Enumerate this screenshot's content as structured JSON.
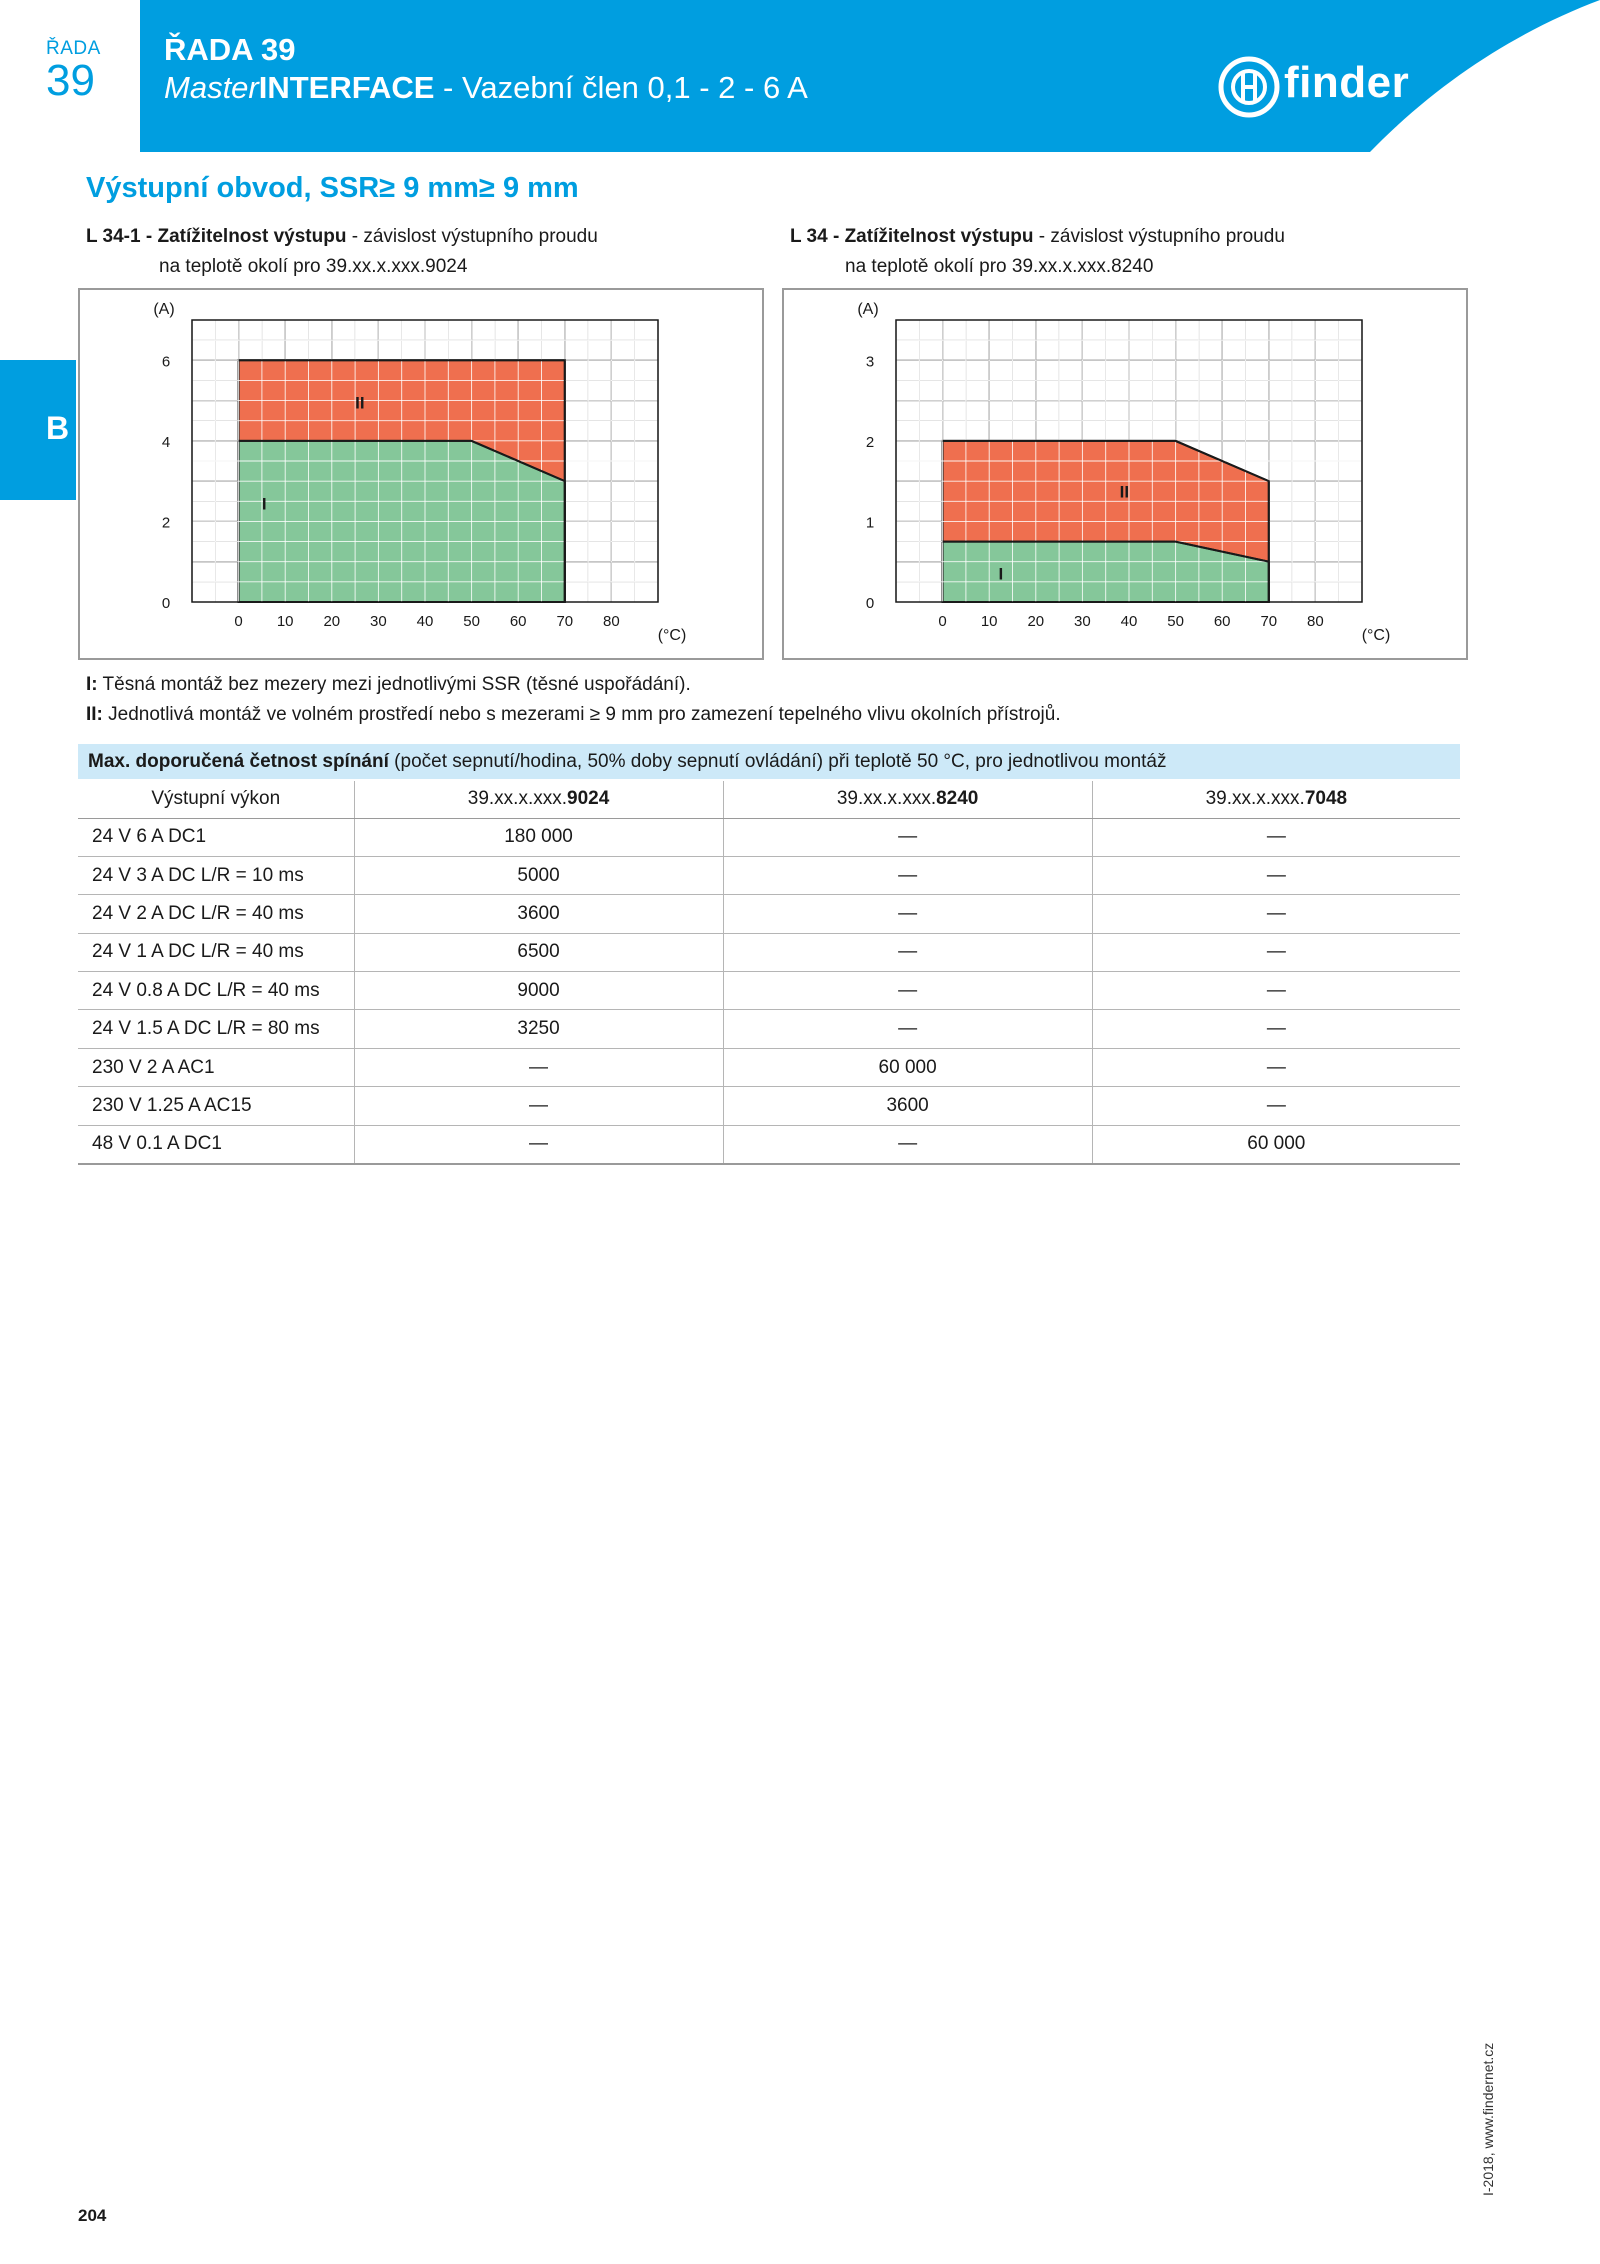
{
  "series_tab": {
    "label": "ŘADA",
    "number": "39"
  },
  "header": {
    "title": "ŘADA 39",
    "subtitle_italic": "Master",
    "subtitle_bold": "INTERFACE",
    "subtitle_rest": " - Vazební člen 0,1 - 2 - 6 A"
  },
  "logo": {
    "text": "finder"
  },
  "side_tab": {
    "letter": "B"
  },
  "section": {
    "title": "Výstupní obvod, SSR≥ 9 mm≥ 9 mm"
  },
  "charts_text": [
    {
      "code": "L 34-1 - ",
      "bold": "Zatížitelnost výstupu",
      "rest": " - závislost výstupního proudu",
      "line2": "na teplotě okolí pro 39.xx.x.xxx.9024"
    },
    {
      "code": "L 34 - ",
      "bold": "Zatížitelnost výstupu",
      "rest": " - závislost výstupního proudu",
      "line2": "na teplotě okolí pro 39.xx.x.xxx.8240"
    }
  ],
  "chart_data": [
    {
      "type": "area",
      "title": "L 34-1 - Zatížitelnost výstupu - závislost výstupního proudu na teplotě okolí pro 39.xx.x.xxx.9024",
      "ylabel": "(A)",
      "xlabel": "(°C)",
      "x_ticks": [
        0,
        10,
        20,
        30,
        40,
        50,
        60,
        70,
        80
      ],
      "y_ticks": [
        0,
        2,
        4,
        6
      ],
      "xlim": [
        -10,
        90
      ],
      "ylim": [
        0,
        7
      ],
      "grid": true,
      "series": [
        {
          "name": "II",
          "color": "#ef6f4f",
          "x": [
            0,
            70,
            70
          ],
          "y": [
            6,
            6,
            0
          ]
        },
        {
          "name": "I",
          "color": "#85c79a",
          "x": [
            0,
            50,
            70,
            70
          ],
          "y": [
            4,
            4,
            3,
            0
          ]
        }
      ]
    },
    {
      "type": "area",
      "title": "L 34 - Zatížitelnost výstupu - závislost výstupního proudu na teplotě okolí pro 39.xx.x.xxx.8240",
      "ylabel": "(A)",
      "xlabel": "(°C)",
      "x_ticks": [
        0,
        10,
        20,
        30,
        40,
        50,
        60,
        70,
        80
      ],
      "y_ticks": [
        0,
        1,
        2,
        3
      ],
      "xlim": [
        -10,
        90
      ],
      "ylim": [
        0,
        3.5
      ],
      "grid": true,
      "series": [
        {
          "name": "II",
          "color": "#ef6f4f",
          "x": [
            0,
            50,
            70,
            70
          ],
          "y": [
            2,
            2,
            1.5,
            0
          ]
        },
        {
          "name": "I",
          "color": "#85c79a",
          "x": [
            0,
            50,
            70,
            70
          ],
          "y": [
            0.75,
            0.75,
            0.5,
            0
          ]
        }
      ]
    }
  ],
  "notes": [
    {
      "key": "I:",
      "text": "  Těsná montáž bez mezery mezi jednotlivými SSR (těsné uspořádání)."
    },
    {
      "key": "II:",
      "text": " Jednotlivá montáž ve volném prostředí nebo s mezerami ≥ 9 mm pro zamezení tepelného vlivu okolních přístrojů."
    }
  ],
  "table": {
    "caption_bold": "Max. doporučená četnost spínání",
    "caption_rest": " (počet sepnutí/hodina, 50% doby sepnutí ovládání) při teplotě 50 °C, pro jednotlivou montáž",
    "header": {
      "col0": "Výstupní výkon",
      "col1_prefix": "39.xx.x.xxx.",
      "col1_bold": "9024",
      "col2_prefix": "39.xx.x.xxx.",
      "col2_bold": "8240",
      "col3_prefix": "39.xx.x.xxx.",
      "col3_bold": "7048"
    },
    "rows": [
      [
        "24 V 6 A DC1",
        "180 000",
        "—",
        "—"
      ],
      [
        "24 V 3 A DC L/R = 10 ms",
        "5000",
        "—",
        "—"
      ],
      [
        "24 V 2 A DC L/R = 40 ms",
        "3600",
        "—",
        "—"
      ],
      [
        "24 V 1 A DC L/R = 40 ms",
        "6500",
        "—",
        "—"
      ],
      [
        "24 V 0.8 A DC L/R = 40 ms",
        "9000",
        "—",
        "—"
      ],
      [
        "24 V 1.5 A DC L/R = 80 ms",
        "3250",
        "—",
        "—"
      ],
      [
        "230 V 2 A AC1",
        "—",
        "60 000",
        "—"
      ],
      [
        "230 V 1.25 A AC15",
        "—",
        "3600",
        "—"
      ],
      [
        "48 V 0.1 A DC1",
        "—",
        "—",
        "60 000"
      ]
    ]
  },
  "footer": {
    "page": "204",
    "vertical": "I-2018, www.findernet.cz"
  },
  "colors": {
    "brand_blue": "#009ee0",
    "caption_bg": "#cde9f8",
    "area_II": "#ef6f4f",
    "area_I": "#85c79a"
  }
}
